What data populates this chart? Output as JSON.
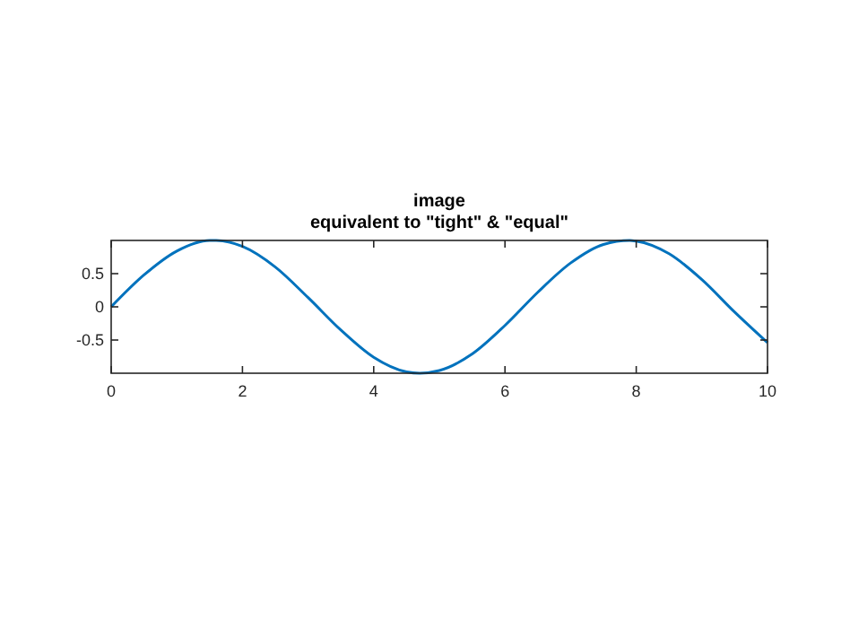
{
  "chart_data": {
    "type": "line",
    "title": "image",
    "subtitle": "equivalent to \"tight\" & \"equal\"",
    "x": [
      0,
      0.5,
      1,
      1.5,
      1.6,
      2,
      2.5,
      3,
      3.5,
      4,
      4.5,
      4.7,
      5,
      5.5,
      6,
      6.5,
      7,
      7.5,
      7.9,
      8,
      8.5,
      9,
      9.5,
      10
    ],
    "series": [
      {
        "color": "#0072bd",
        "values": [
          0,
          0.48,
          0.84,
          1,
          1,
          0.91,
          0.6,
          0.14,
          -0.35,
          -0.76,
          -0.98,
          -1,
          -0.96,
          -0.71,
          -0.28,
          0.22,
          0.66,
          0.94,
          1,
          0.99,
          0.8,
          0.41,
          -0.08,
          -0.54
        ]
      }
    ],
    "xlim": [
      0,
      10
    ],
    "ylim": [
      -1,
      1
    ],
    "xticks": [
      0,
      2,
      4,
      6,
      8,
      10
    ],
    "yticks": [
      -0.5,
      0,
      0.5
    ],
    "grid": false,
    "marker": "none",
    "line_style": "solid"
  }
}
